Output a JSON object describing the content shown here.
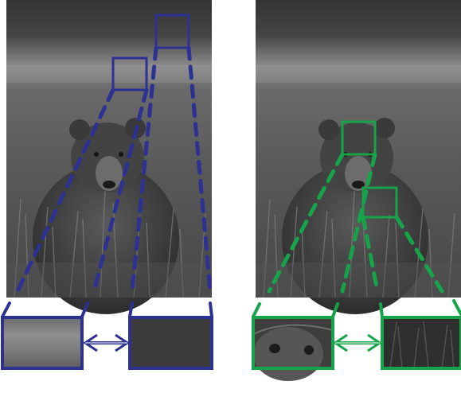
{
  "colors": {
    "left_accent": "#2d3192",
    "right_accent": "#16a34a",
    "background": "#ffffff",
    "photo_sky_top": "#3c3c3c",
    "photo_sky_band": "#8a8a8a",
    "photo_meadow": "#5f5f5f",
    "photo_grass": "#4a4a4a",
    "bear_fur": "#3d3d3d"
  },
  "panels": [
    {
      "id": "left",
      "accent": "left_accent",
      "image": "grayscale-bear-photo",
      "patch_a_content": "sky-gradient-patch",
      "patch_b_content": "dark-sky-patch",
      "connector": "double-headed-arrow-icon"
    },
    {
      "id": "right",
      "accent": "right_accent",
      "image": "grayscale-bear-photo",
      "patch_a_content": "bear-face-closeup-patch",
      "patch_b_content": "bear-fur-closeup-patch",
      "connector": "double-headed-arrow-icon"
    }
  ]
}
